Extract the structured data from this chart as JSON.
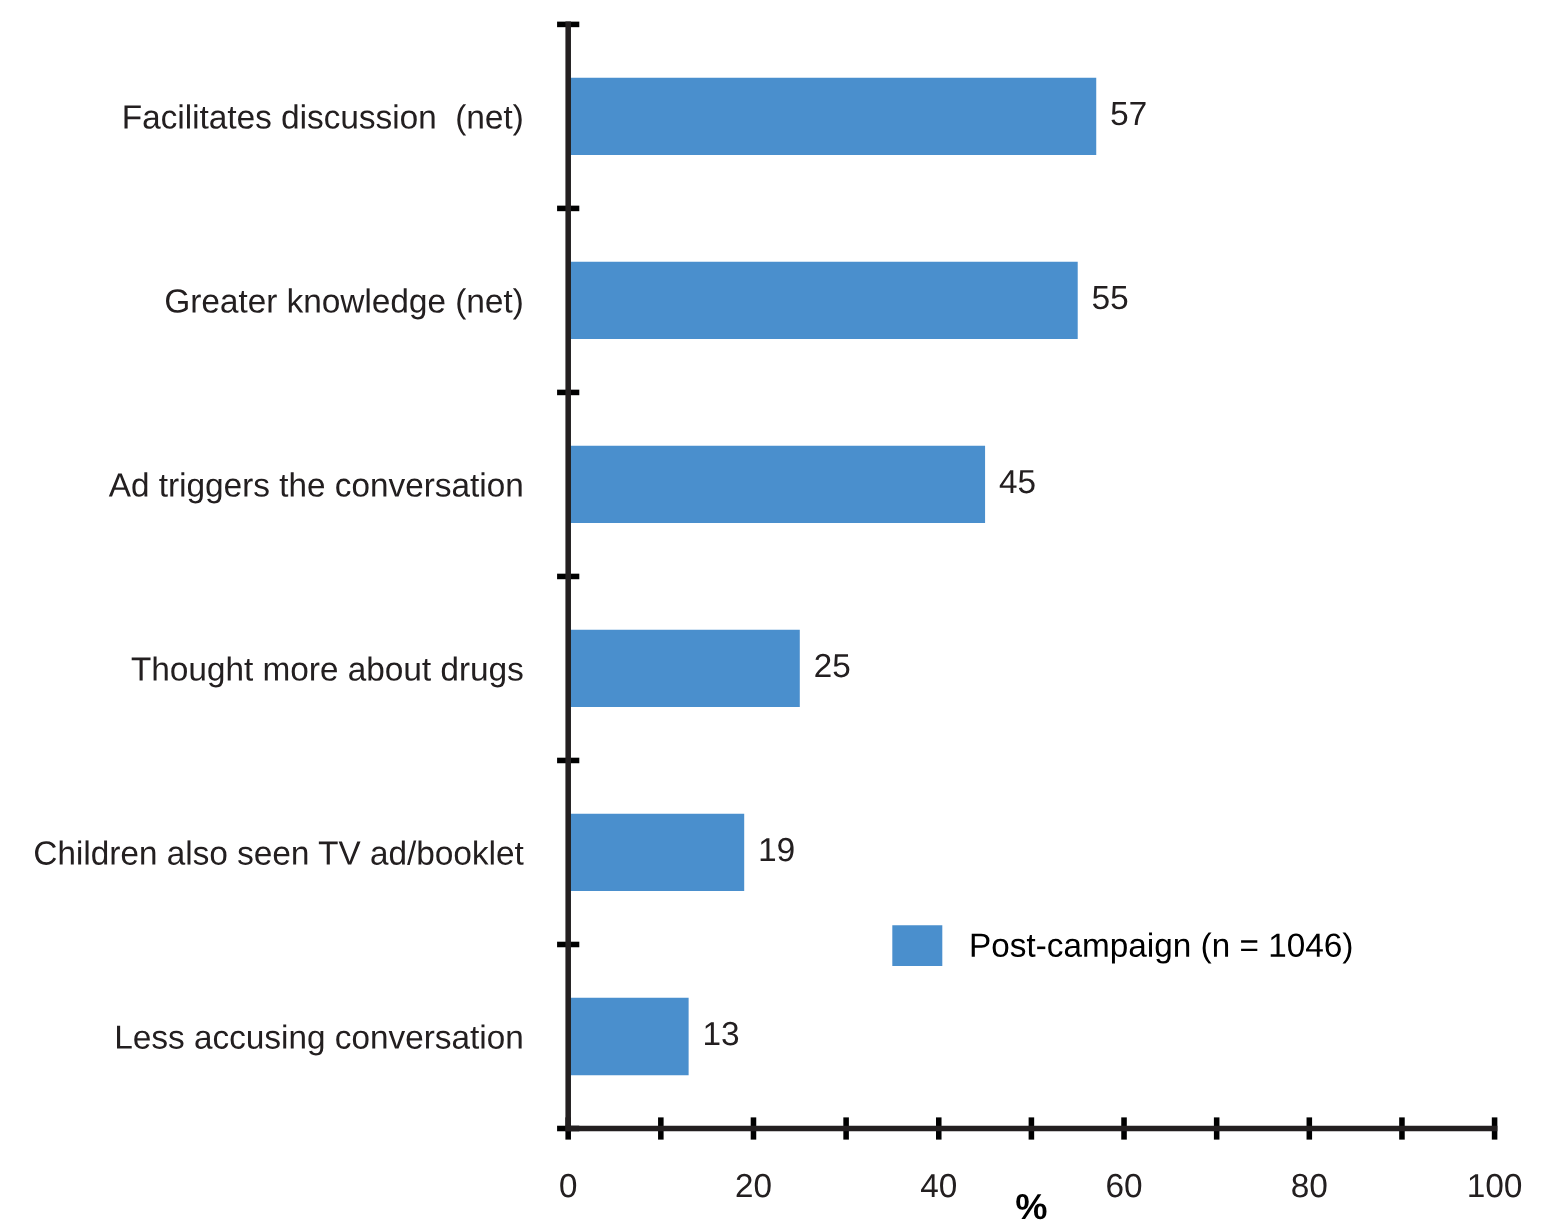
{
  "chart_data": {
    "type": "bar",
    "orientation": "horizontal",
    "xlabel": "%",
    "categories": [
      "Facilitates discussion  (net)",
      "Greater knowledge (net)",
      "Ad triggers the conversation",
      "Thought more about drugs",
      "Children also seen TV ad/booklet",
      "Less accusing conversation"
    ],
    "series": [
      {
        "name": "Post-campaign (n = 1046)",
        "color": "#4a8fcd",
        "values": [
          57,
          55,
          45,
          25,
          19,
          13
        ]
      }
    ],
    "data_labels": true,
    "xlim": [
      0,
      100
    ],
    "xticks": [
      0,
      {
        "value": 10,
        "label": null
      },
      20,
      {
        "value": 30,
        "label": null
      },
      40,
      {
        "value": 50,
        "label": null
      },
      60,
      {
        "value": 70,
        "label": null
      },
      80,
      {
        "value": 90,
        "label": null
      },
      100
    ],
    "legend": "bottom right",
    "grid": false
  }
}
